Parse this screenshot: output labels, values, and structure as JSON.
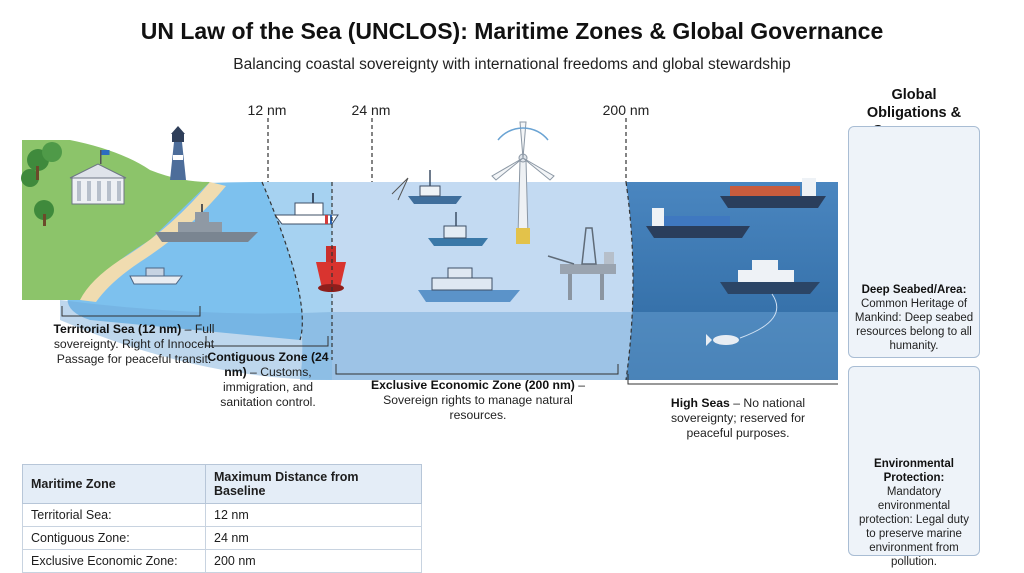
{
  "header": {
    "title": "UN Law of the Sea (UNCLOS): Maritime Zones & Global Governance",
    "subtitle": "Balancing coastal sovereignty with international freedoms and global stewardship"
  },
  "distances": {
    "d12": "12 nm",
    "d24": "24 nm",
    "d200": "200 nm"
  },
  "zones": {
    "territorial": {
      "name": "Territorial Sea (12 nm)",
      "desc": "Full sovereignty. Right of Innocent Passage for peaceful transit."
    },
    "contiguous": {
      "name": "Contiguous Zone (24 nm)",
      "desc": "Customs, immigration, and sanitation control."
    },
    "eez": {
      "name": "Exclusive Economic Zone (200 nm)",
      "desc": "Sovereign rights to manage natural resources."
    },
    "high_seas": {
      "name": "High Seas",
      "desc": "No national sovereignty; reserved for peaceful purposes."
    }
  },
  "dash": " – ",
  "panel": {
    "title": "Global Obligations & Governance",
    "seabed": {
      "name": "Deep Seabed/Area:",
      "desc": "Common Heritage of Mankind: Deep seabed resources belong to all humanity."
    },
    "environment": {
      "name": "Environmental Protection:",
      "desc": "Mandatory environmental protection: Legal duty to preserve marine environment from pollution."
    }
  },
  "table": {
    "headers": [
      "Maritime Zone",
      "Maximum Distance from Baseline"
    ],
    "rows": [
      [
        "Territorial Sea:",
        "12 nm"
      ],
      [
        "Contiguous Zone:",
        "24 nm"
      ],
      [
        "Exclusive Economic Zone:",
        "200 nm"
      ]
    ]
  },
  "colors": {
    "land": "#8cc46a",
    "sand": "#f0dcb0",
    "territorial": "#7cc0ee",
    "contiguous": "#a5d2f2",
    "eez": "#c2d9f2",
    "high_seas": "#3f7eb9",
    "deep": "#2e6ca3"
  }
}
